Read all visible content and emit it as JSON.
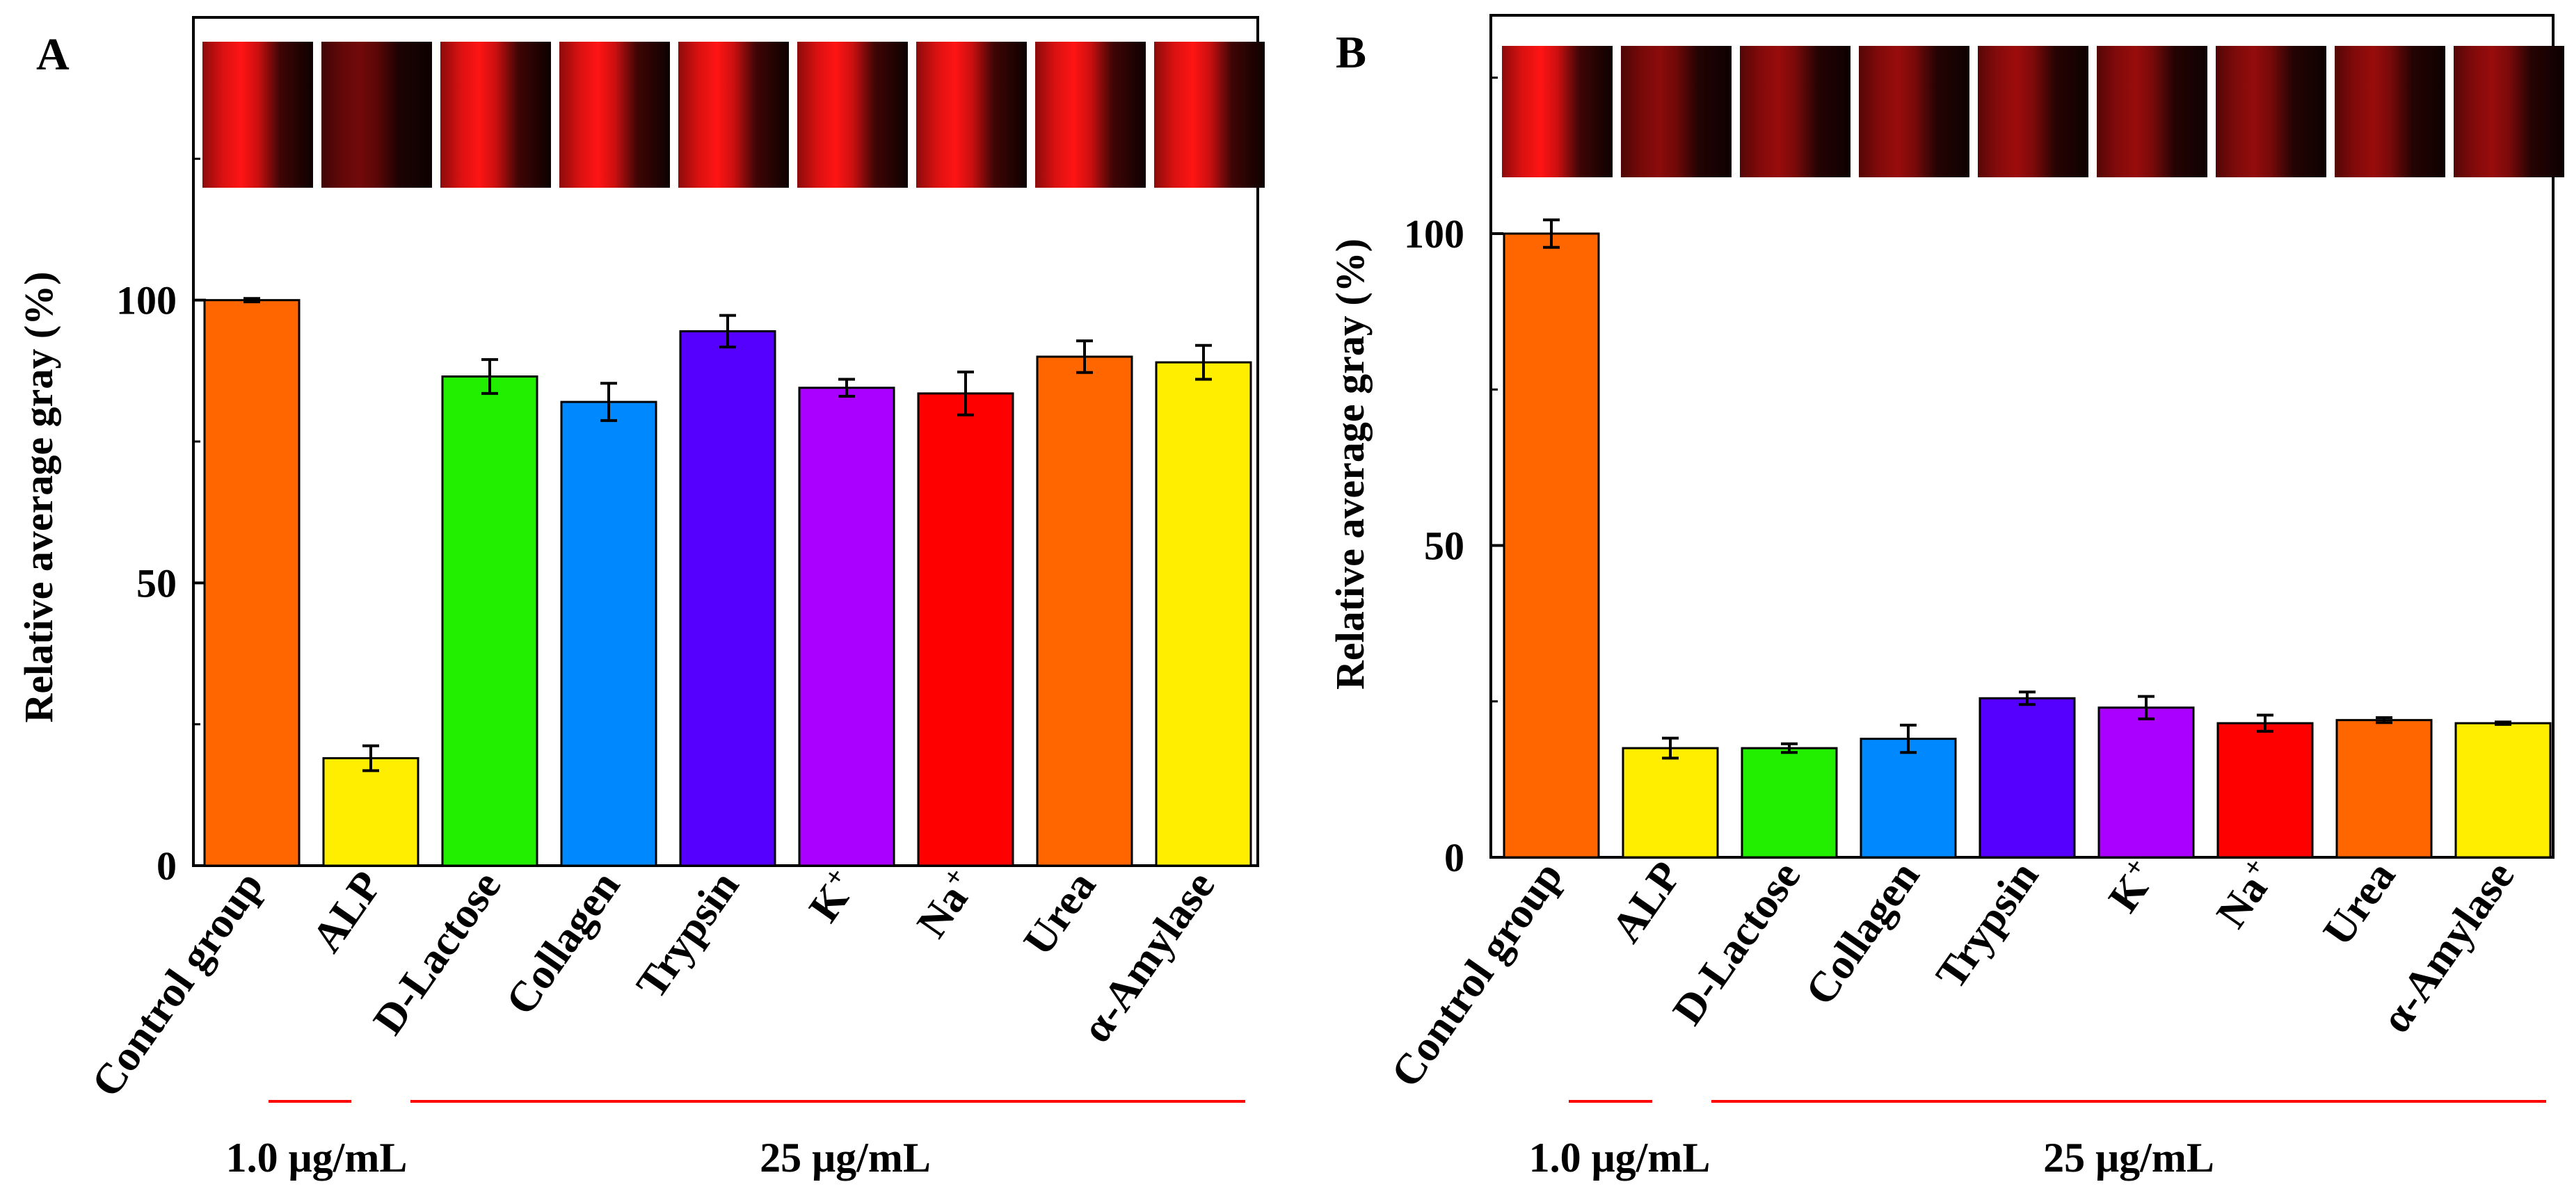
{
  "chart_data": [
    {
      "type": "bar",
      "panel_label": "A",
      "ylabel": "Relative average gray (%)",
      "ylim": [
        0,
        150
      ],
      "yticks": [
        0,
        50,
        100
      ],
      "categories": [
        "Control group",
        "ALP",
        "D-Lactose",
        "Collagen",
        "Trypsin",
        "K",
        "Na",
        "Urea",
        "α-Amylase"
      ],
      "superscripts": [
        "",
        "",
        "",
        "",
        "",
        "+",
        "+",
        "",
        ""
      ],
      "values": [
        100,
        19,
        86.5,
        82,
        94.5,
        84.5,
        83.5,
        90,
        89
      ],
      "errors": [
        0.3,
        2.2,
        3.0,
        3.3,
        2.8,
        1.5,
        3.8,
        2.8,
        3.0
      ],
      "colors": [
        "#FF6600",
        "#FFEE00",
        "#22EE00",
        "#0088FF",
        "#5500FF",
        "#AA00FF",
        "#FF0000",
        "#FF6600",
        "#FFEE00"
      ],
      "strip_intensity": [
        1.0,
        0.45,
        1.0,
        1.0,
        1.0,
        1.0,
        1.0,
        1.0,
        1.0
      ],
      "groups": [
        {
          "label": "1.0 μg/mL",
          "from": 1,
          "to": 1
        },
        {
          "label": "25 μg/mL",
          "from": 2,
          "to": 8
        }
      ]
    },
    {
      "type": "bar",
      "panel_label": "B",
      "ylabel": "Relative average gray (%)",
      "ylim": [
        0,
        135
      ],
      "yticks": [
        0,
        50,
        100
      ],
      "categories": [
        "Control group",
        "ALP",
        "D-Lactose",
        "Collagen",
        "Trypsin",
        "K",
        "Na",
        "Urea",
        "α-Amylase"
      ],
      "superscripts": [
        "",
        "",
        "",
        "",
        "",
        "+",
        "+",
        "",
        ""
      ],
      "values": [
        100,
        17.5,
        17.5,
        19,
        25.5,
        24,
        21.5,
        22,
        21.5
      ],
      "errors": [
        2.2,
        1.6,
        0.7,
        2.2,
        1.0,
        1.8,
        1.3,
        0.4,
        0.2
      ],
      "colors": [
        "#FF6600",
        "#FFEE00",
        "#22EE00",
        "#0088FF",
        "#5500FF",
        "#AA00FF",
        "#FF0000",
        "#FF6600",
        "#FFEE00"
      ],
      "strip_intensity": [
        1.0,
        0.55,
        0.6,
        0.6,
        0.62,
        0.6,
        0.58,
        0.6,
        0.6
      ],
      "groups": [
        {
          "label": "1.0 μg/mL",
          "from": 1,
          "to": 1
        },
        {
          "label": "25 μg/mL",
          "from": 2,
          "to": 8
        }
      ]
    }
  ]
}
